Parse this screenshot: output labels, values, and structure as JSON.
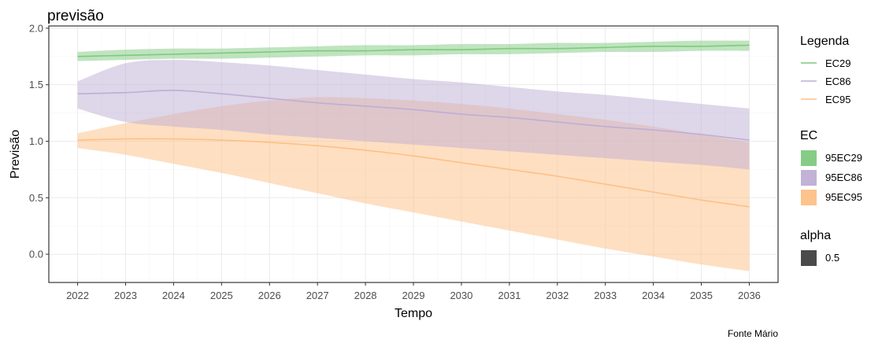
{
  "chart_data": {
    "type": "line",
    "title": "previsão",
    "xlabel": "Tempo",
    "ylabel": "Previsão",
    "caption": "Fonte Mário",
    "x": [
      2022,
      2023,
      2024,
      2025,
      2026,
      2027,
      2028,
      2029,
      2030,
      2031,
      2032,
      2033,
      2034,
      2035,
      2036
    ],
    "x_tick_labels": [
      "2022",
      "2023",
      "2024",
      "2025",
      "2026",
      "2027",
      "2028",
      "2029",
      "2030",
      "2031",
      "2032",
      "2033",
      "2034",
      "2035",
      "2036"
    ],
    "xlim": [
      2021.4,
      2036.6
    ],
    "ylim": [
      -0.25,
      2.02
    ],
    "y_ticks": [
      0.0,
      0.5,
      1.0,
      1.5,
      2.0
    ],
    "y_tick_labels": [
      "0.0",
      "0.5",
      "1.0",
      "1.5",
      "2.0"
    ],
    "grid": true,
    "series": [
      {
        "name": "EC29",
        "color": "#7fc97f",
        "values": [
          1.75,
          1.76,
          1.77,
          1.78,
          1.79,
          1.8,
          1.8,
          1.81,
          1.81,
          1.82,
          1.82,
          1.83,
          1.84,
          1.84,
          1.85
        ],
        "lower": [
          1.71,
          1.72,
          1.73,
          1.73,
          1.74,
          1.75,
          1.76,
          1.76,
          1.77,
          1.77,
          1.78,
          1.79,
          1.79,
          1.8,
          1.8
        ],
        "upper": [
          1.79,
          1.81,
          1.82,
          1.82,
          1.83,
          1.84,
          1.85,
          1.85,
          1.86,
          1.86,
          1.87,
          1.87,
          1.88,
          1.89,
          1.89
        ]
      },
      {
        "name": "EC86",
        "color": "#beaed4",
        "values": [
          1.42,
          1.43,
          1.45,
          1.42,
          1.38,
          1.34,
          1.31,
          1.28,
          1.24,
          1.21,
          1.17,
          1.13,
          1.1,
          1.06,
          1.01
        ],
        "lower": [
          1.29,
          1.17,
          1.13,
          1.1,
          1.06,
          1.03,
          1.0,
          0.97,
          0.94,
          0.91,
          0.88,
          0.85,
          0.82,
          0.79,
          0.75
        ],
        "upper": [
          1.53,
          1.69,
          1.72,
          1.7,
          1.67,
          1.63,
          1.59,
          1.55,
          1.52,
          1.48,
          1.44,
          1.41,
          1.37,
          1.33,
          1.29
        ]
      },
      {
        "name": "EC95",
        "color": "#fdc086",
        "values": [
          1.01,
          1.02,
          1.02,
          1.01,
          0.99,
          0.96,
          0.92,
          0.87,
          0.81,
          0.75,
          0.69,
          0.62,
          0.55,
          0.48,
          0.42
        ],
        "lower": [
          0.94,
          0.88,
          0.8,
          0.72,
          0.63,
          0.54,
          0.45,
          0.37,
          0.29,
          0.21,
          0.13,
          0.05,
          -0.02,
          -0.09,
          -0.15
        ],
        "upper": [
          1.07,
          1.16,
          1.24,
          1.31,
          1.36,
          1.39,
          1.38,
          1.36,
          1.33,
          1.29,
          1.24,
          1.19,
          1.13,
          1.06,
          0.99
        ]
      }
    ],
    "legends": [
      {
        "title": "Legenda",
        "kind": "line",
        "entries": [
          {
            "label": "EC29",
            "color": "#7fc97f"
          },
          {
            "label": "EC86",
            "color": "#beaed4"
          },
          {
            "label": "EC95",
            "color": "#fdc086"
          }
        ]
      },
      {
        "title": "EC",
        "kind": "fill",
        "entries": [
          {
            "label": "95EC29",
            "color": "#7fc97f"
          },
          {
            "label": "95EC86",
            "color": "#beaed4"
          },
          {
            "label": "95EC95",
            "color": "#fdc086"
          }
        ]
      },
      {
        "title": "alpha",
        "kind": "fill",
        "entries": [
          {
            "label": "0.5",
            "color": "#4a4a4a"
          }
        ]
      }
    ],
    "band_alpha": 0.5,
    "legend_position": "right"
  }
}
